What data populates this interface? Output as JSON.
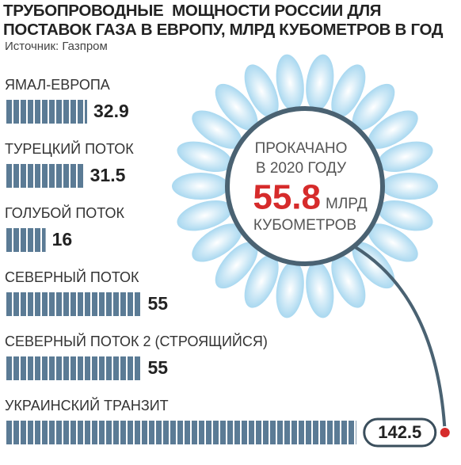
{
  "chart_data": {
    "type": "bar",
    "orientation": "horizontal",
    "title": "ТРУБОПРОВОДНЫЕ  МОЩНОСТИ РОССИИ ДЛЯ ПОСТАВОК ГАЗА В ЕВРОПУ, МЛРД КУБОМЕТРОВ В ГОД",
    "subtitle": "Источник: Газпром",
    "categories": [
      "ЯМАЛ-ЕВРОПА",
      "ТУРЕЦКИЙ ПОТОК",
      "ГОЛУБОЙ ПОТОК",
      "СЕВЕРНЫЙ ПОТОК",
      "СЕВЕРНЫЙ ПОТОК 2 (СТРОЯЩИЙСЯ)",
      "УКРАИНСКИЙ ТРАНЗИТ"
    ],
    "values": [
      32.9,
      31.5,
      16,
      55,
      55,
      142.5
    ],
    "color": "#5b7b95",
    "highlight_color": "#d62b2b",
    "annotation": {
      "line_1": "ПРОКАЧАНО",
      "line_2": "В 2020 ГОДУ",
      "value": 55.8,
      "unit": "МЛРД",
      "line_3": "КУБОМЕТРОВ"
    }
  }
}
